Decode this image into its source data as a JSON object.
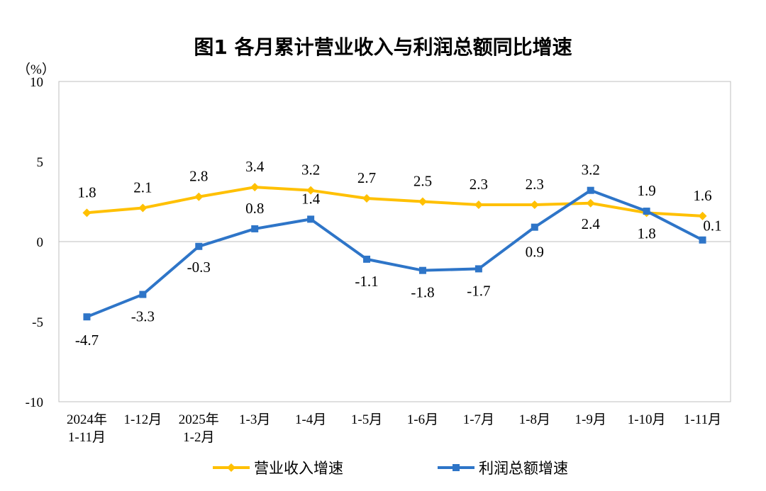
{
  "chart_data": {
    "type": "line",
    "title": "图1  各月累计营业收入与利润总额同比增速",
    "ylabel": "（%）",
    "ylim": [
      -10,
      10
    ],
    "yticks": [
      10,
      5,
      0,
      -5,
      -10
    ],
    "grid": false,
    "legend_position": "bottom",
    "categories": [
      [
        "2024年",
        "1-11月"
      ],
      [
        "1-12月"
      ],
      [
        "2025年",
        "1-2月"
      ],
      [
        "1-3月"
      ],
      [
        "1-4月"
      ],
      [
        "1-5月"
      ],
      [
        "1-6月"
      ],
      [
        "1-7月"
      ],
      [
        "1-8月"
      ],
      [
        "1-9月"
      ],
      [
        "1-10月"
      ],
      [
        "1-11月"
      ]
    ],
    "series": [
      {
        "name": "营业收入增速",
        "color": "#FFC000",
        "marker": "diamond",
        "values": [
          1.8,
          2.1,
          2.8,
          3.4,
          3.2,
          2.7,
          2.5,
          2.3,
          2.3,
          2.4,
          1.8,
          1.6
        ]
      },
      {
        "name": "利润总额增速",
        "color": "#2E75C8",
        "marker": "square",
        "values": [
          -4.7,
          -3.3,
          -0.3,
          0.8,
          1.4,
          -1.1,
          -1.8,
          -1.7,
          0.9,
          3.2,
          1.9,
          0.1
        ]
      }
    ]
  }
}
